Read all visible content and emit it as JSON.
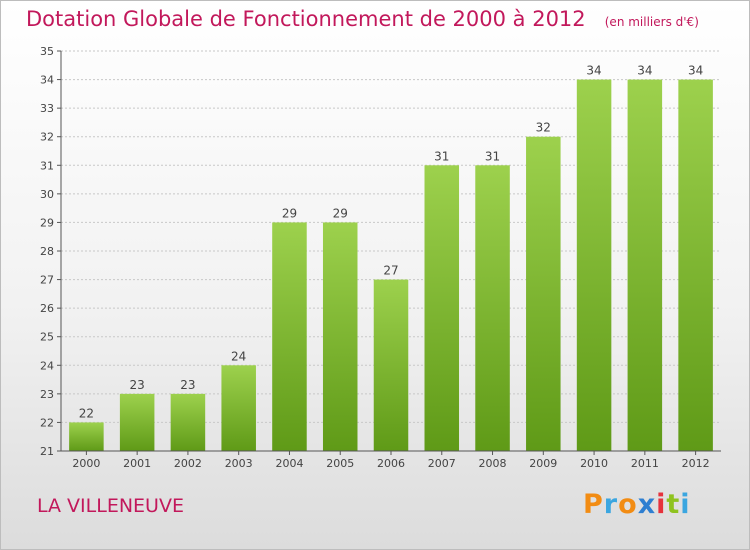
{
  "chart_data": {
    "type": "bar",
    "title": "Dotation Globale de Fonctionnement de 2000 à 2012",
    "unit": "(en milliers d'€)",
    "categories": [
      "2000",
      "2001",
      "2002",
      "2003",
      "2004",
      "2005",
      "2006",
      "2007",
      "2008",
      "2009",
      "2010",
      "2011",
      "2012"
    ],
    "values": [
      22,
      23,
      23,
      24,
      29,
      29,
      27,
      31,
      31,
      32,
      34,
      34,
      34
    ],
    "ylim": [
      21,
      35
    ],
    "yticks": [
      21,
      22,
      23,
      24,
      25,
      26,
      27,
      28,
      29,
      30,
      31,
      32,
      33,
      34,
      35
    ],
    "grid": true,
    "colors": {
      "bar_top": "#9dd14d",
      "bar_bottom": "#5f9a17",
      "text": "#c2185b",
      "axis": "#555555"
    }
  },
  "footer": {
    "city": "LA VILLENEUVE",
    "logo_text": "Proxiti",
    "logo_colors": [
      "#f28c13",
      "#3ba6e0",
      "#f28c13",
      "#2e7fd1",
      "#e6323c",
      "#8fc31f",
      "#3ba6e0"
    ]
  }
}
